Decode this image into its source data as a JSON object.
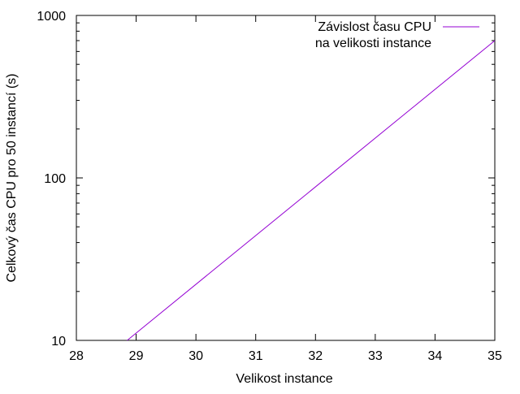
{
  "chart_data": {
    "type": "line",
    "title": "",
    "xlabel": "Velikost instance",
    "ylabel": "Celkový čas CPU pro 50 instancí (s)",
    "xlim": [
      28,
      35
    ],
    "ylim": [
      10,
      1000
    ],
    "yscale": "log",
    "grid": false,
    "legend_position": "top-right",
    "x_ticks": [
      28,
      29,
      30,
      31,
      32,
      33,
      34,
      35
    ],
    "x_tick_labels": [
      "28",
      "29",
      "30",
      "31",
      "32",
      "33",
      "34",
      "35"
    ],
    "y_ticks": [
      10,
      100,
      1000
    ],
    "y_tick_labels": [
      "10",
      "100",
      "1000"
    ],
    "series": [
      {
        "name": "Závislost času CPU\nna velikosti instance",
        "legend_lines": [
          "Závislost času CPU",
          "na velikosti instance"
        ],
        "color": "#9400d3",
        "x": [
          28.85,
          35
        ],
        "y": [
          10,
          700
        ]
      }
    ]
  }
}
